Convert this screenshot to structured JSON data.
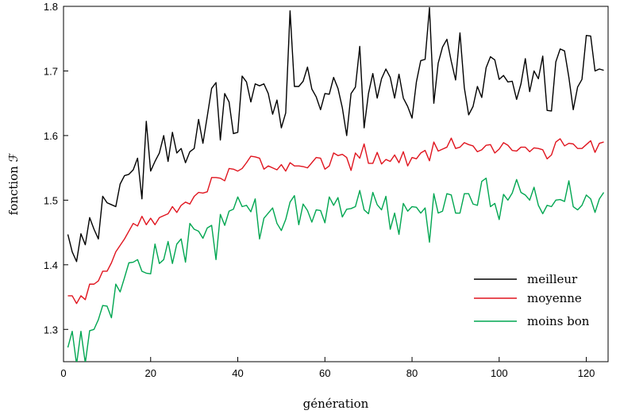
{
  "chart_data": {
    "type": "line",
    "xlabel": "génération",
    "ylabel": "fonction ℱ",
    "xlim": [
      0,
      125
    ],
    "ylim": [
      1.25,
      1.8
    ],
    "xticks": [
      0,
      20,
      40,
      60,
      80,
      100,
      120
    ],
    "yticks": [
      1.3,
      1.4,
      1.5,
      1.6,
      1.7,
      1.8
    ],
    "xtick_labels": [
      "0",
      "20",
      "40",
      "60",
      "80",
      "100",
      "120"
    ],
    "ytick_labels": [
      "1.3",
      "1.4",
      "1.5",
      "1.6",
      "1.7",
      "1.8"
    ],
    "legend_position": "lower-right",
    "series": [
      {
        "name": "meilleur",
        "color": "#000000",
        "values": [
          1.447,
          1.42,
          1.405,
          1.448,
          1.431,
          1.473,
          1.455,
          1.44,
          1.506,
          1.496,
          1.493,
          1.49,
          1.525,
          1.538,
          1.54,
          1.547,
          1.565,
          1.502,
          1.622,
          1.545,
          1.56,
          1.573,
          1.6,
          1.56,
          1.605,
          1.573,
          1.58,
          1.558,
          1.575,
          1.58,
          1.625,
          1.588,
          1.63,
          1.673,
          1.682,
          1.593,
          1.665,
          1.652,
          1.603,
          1.605,
          1.692,
          1.683,
          1.652,
          1.68,
          1.677,
          1.68,
          1.665,
          1.633,
          1.655,
          1.612,
          1.635,
          1.793,
          1.676,
          1.676,
          1.684,
          1.706,
          1.672,
          1.66,
          1.64,
          1.665,
          1.664,
          1.69,
          1.673,
          1.643,
          1.6,
          1.665,
          1.675,
          1.738,
          1.612,
          1.665,
          1.696,
          1.658,
          1.688,
          1.703,
          1.69,
          1.658,
          1.695,
          1.658,
          1.645,
          1.627,
          1.683,
          1.716,
          1.718,
          1.798,
          1.65,
          1.712,
          1.737,
          1.749,
          1.715,
          1.686,
          1.759,
          1.674,
          1.632,
          1.645,
          1.676,
          1.659,
          1.705,
          1.722,
          1.717,
          1.687,
          1.693,
          1.683,
          1.684,
          1.656,
          1.68,
          1.719,
          1.668,
          1.7,
          1.688,
          1.723,
          1.639,
          1.638,
          1.714,
          1.734,
          1.731,
          1.69,
          1.64,
          1.675,
          1.687,
          1.755,
          1.754,
          1.7,
          1.703,
          1.701
        ]
      },
      {
        "name": "moyenne",
        "color": "#e0141e",
        "values": [
          1.352,
          1.352,
          1.34,
          1.352,
          1.346,
          1.37,
          1.37,
          1.375,
          1.39,
          1.39,
          1.403,
          1.42,
          1.43,
          1.44,
          1.452,
          1.464,
          1.46,
          1.475,
          1.462,
          1.472,
          1.462,
          1.473,
          1.476,
          1.479,
          1.49,
          1.481,
          1.492,
          1.497,
          1.494,
          1.506,
          1.512,
          1.511,
          1.513,
          1.535,
          1.535,
          1.534,
          1.53,
          1.549,
          1.548,
          1.545,
          1.549,
          1.558,
          1.568,
          1.567,
          1.565,
          1.548,
          1.553,
          1.55,
          1.547,
          1.555,
          1.545,
          1.558,
          1.553,
          1.553,
          1.552,
          1.55,
          1.558,
          1.566,
          1.565,
          1.548,
          1.553,
          1.573,
          1.569,
          1.571,
          1.566,
          1.546,
          1.573,
          1.565,
          1.587,
          1.557,
          1.557,
          1.574,
          1.556,
          1.563,
          1.56,
          1.57,
          1.558,
          1.575,
          1.553,
          1.566,
          1.564,
          1.573,
          1.577,
          1.561,
          1.59,
          1.576,
          1.579,
          1.582,
          1.596,
          1.58,
          1.582,
          1.589,
          1.586,
          1.584,
          1.575,
          1.578,
          1.585,
          1.586,
          1.573,
          1.579,
          1.589,
          1.585,
          1.577,
          1.576,
          1.582,
          1.582,
          1.575,
          1.581,
          1.58,
          1.578,
          1.564,
          1.57,
          1.59,
          1.595,
          1.584,
          1.588,
          1.587,
          1.58,
          1.58,
          1.586,
          1.592,
          1.574,
          1.588,
          1.59
        ]
      },
      {
        "name": "moins bon",
        "color": "#00a651",
        "values": [
          1.272,
          1.297,
          1.246,
          1.297,
          1.248,
          1.298,
          1.3,
          1.315,
          1.337,
          1.336,
          1.318,
          1.37,
          1.358,
          1.38,
          1.403,
          1.404,
          1.408,
          1.39,
          1.387,
          1.386,
          1.432,
          1.402,
          1.408,
          1.436,
          1.402,
          1.432,
          1.44,
          1.404,
          1.464,
          1.455,
          1.452,
          1.441,
          1.457,
          1.461,
          1.408,
          1.478,
          1.461,
          1.483,
          1.486,
          1.505,
          1.49,
          1.492,
          1.482,
          1.502,
          1.44,
          1.472,
          1.48,
          1.488,
          1.464,
          1.453,
          1.47,
          1.497,
          1.507,
          1.462,
          1.494,
          1.484,
          1.466,
          1.485,
          1.484,
          1.465,
          1.505,
          1.492,
          1.504,
          1.474,
          1.486,
          1.487,
          1.49,
          1.515,
          1.485,
          1.479,
          1.512,
          1.493,
          1.485,
          1.506,
          1.455,
          1.48,
          1.447,
          1.495,
          1.483,
          1.49,
          1.489,
          1.48,
          1.488,
          1.435,
          1.51,
          1.48,
          1.483,
          1.51,
          1.508,
          1.48,
          1.48,
          1.51,
          1.51,
          1.494,
          1.492,
          1.529,
          1.534,
          1.49,
          1.495,
          1.47,
          1.509,
          1.5,
          1.511,
          1.532,
          1.512,
          1.508,
          1.5,
          1.52,
          1.492,
          1.479,
          1.492,
          1.49,
          1.5,
          1.501,
          1.498,
          1.53,
          1.49,
          1.485,
          1.492,
          1.508,
          1.502,
          1.481,
          1.502,
          1.512
        ]
      }
    ]
  }
}
